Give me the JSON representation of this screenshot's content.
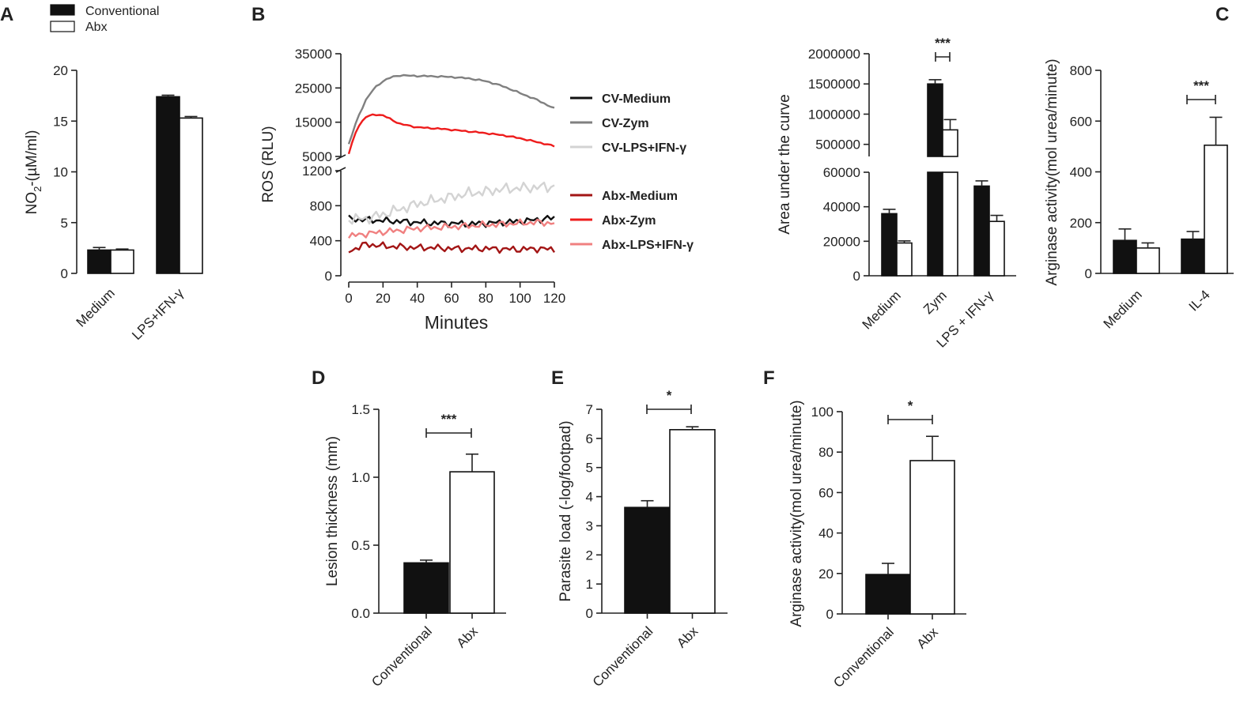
{
  "colors": {
    "black": "#111111",
    "white": "#ffffff",
    "cv_medium": "#111111",
    "cv_zym": "#808080",
    "cv_lps": "#d3d3d3",
    "abx_medium": "#a31515",
    "abx_zym": "#ee1c1c",
    "abx_lps": "#f08080"
  },
  "chart_data": [
    {
      "panel": "A",
      "type": "bar",
      "legend": [
        "Conventional",
        "Abx"
      ],
      "categories": [
        "Medium",
        "LPS+IFN-γ"
      ],
      "series": [
        {
          "name": "Conventional",
          "values": [
            2.3,
            17.4
          ],
          "errors": [
            0.25,
            0.15
          ]
        },
        {
          "name": "Abx",
          "values": [
            2.3,
            15.3
          ],
          "errors": [
            0.1,
            0.15
          ]
        }
      ],
      "ylabel_main": "NO",
      "ylabel_sub": "2",
      "ylabel_rest": "-(µM/ml)",
      "ylim": [
        0,
        20
      ],
      "yticks": [
        "0",
        "5",
        "10",
        "15",
        "20"
      ]
    },
    {
      "panel": "B",
      "type": "line",
      "ylabel": "ROS (RLU)",
      "xlabel": "Minutes",
      "xticks": [
        "0",
        "20",
        "40",
        "60",
        "80",
        "100",
        "120"
      ],
      "xlim": [
        0,
        120
      ],
      "upper_ylim": [
        5000,
        35000
      ],
      "upper_yticks": [
        "5000",
        "15000",
        "25000",
        "35000"
      ],
      "lower_ylim": [
        0,
        1200
      ],
      "lower_yticks": [
        "0",
        "400",
        "800",
        "1200"
      ],
      "series": [
        {
          "name": "CV-Medium",
          "x": [
            0,
            10,
            20,
            30,
            40,
            50,
            60,
            70,
            80,
            90,
            100,
            110,
            120
          ],
          "y": [
            650,
            640,
            630,
            620,
            610,
            600,
            600,
            590,
            600,
            610,
            620,
            640,
            660
          ]
        },
        {
          "name": "CV-Zym",
          "x": [
            0,
            5,
            10,
            15,
            20,
            25,
            30,
            40,
            50,
            60,
            70,
            80,
            90,
            100,
            110,
            120
          ],
          "y": [
            8500,
            16000,
            21500,
            25000,
            27000,
            28200,
            28700,
            28500,
            28400,
            28200,
            27800,
            27000,
            25500,
            23500,
            21500,
            19000
          ]
        },
        {
          "name": "CV-LPS+IFN-γ",
          "x": [
            0,
            10,
            20,
            30,
            40,
            50,
            60,
            70,
            80,
            90,
            100,
            110,
            120
          ],
          "y": [
            650,
            650,
            700,
            760,
            820,
            860,
            900,
            940,
            960,
            990,
            1000,
            1010,
            1020
          ]
        },
        {
          "name": "Abx-Medium",
          "x": [
            0,
            10,
            20,
            30,
            40,
            50,
            60,
            70,
            80,
            90,
            100,
            110,
            120
          ],
          "y": [
            280,
            360,
            340,
            330,
            320,
            320,
            310,
            310,
            310,
            305,
            300,
            310,
            300
          ]
        },
        {
          "name": "Abx-Zym",
          "x": [
            0,
            5,
            10,
            15,
            20,
            30,
            40,
            50,
            60,
            70,
            80,
            90,
            100,
            110,
            120
          ],
          "y": [
            5800,
            13500,
            16500,
            17300,
            17000,
            14500,
            13500,
            13200,
            12800,
            12300,
            11800,
            11200,
            10300,
            9200,
            8000
          ]
        },
        {
          "name": "Abx-LPS+IFN-γ",
          "x": [
            0,
            10,
            20,
            30,
            40,
            50,
            60,
            70,
            80,
            90,
            100,
            110,
            120
          ],
          "y": [
            450,
            480,
            500,
            520,
            540,
            550,
            560,
            570,
            580,
            590,
            600,
            610,
            600
          ]
        }
      ]
    },
    {
      "panel": "B-AUC",
      "type": "bar",
      "ylabel": "Area under the curve",
      "categories": [
        "Medium",
        "Zym",
        "LPS + IFN-γ"
      ],
      "series": [
        {
          "name": "Conventional",
          "values": [
            36000,
            1500000,
            52000
          ],
          "errors": [
            2500,
            70000,
            3000
          ]
        },
        {
          "name": "Abx",
          "values": [
            19000,
            740000,
            31500
          ],
          "errors": [
            1200,
            170000,
            3500
          ]
        }
      ],
      "upper_ylim": [
        300000,
        2000000
      ],
      "upper_yticks": [
        "500000",
        "1000000",
        "1500000",
        "2000000"
      ],
      "lower_ylim": [
        0,
        60000
      ],
      "lower_yticks": [
        "0",
        "20000",
        "40000",
        "60000"
      ],
      "annotation": "***"
    },
    {
      "panel": "C",
      "type": "bar",
      "ylabel": "Arginase activity(mol urea/minute)",
      "categories": [
        "Medium",
        "IL-4"
      ],
      "series": [
        {
          "name": "Conventional",
          "values": [
            130,
            135
          ],
          "errors": [
            45,
            30
          ]
        },
        {
          "name": "Abx",
          "values": [
            100,
            505
          ],
          "errors": [
            20,
            110
          ]
        }
      ],
      "ylim": [
        0,
        800
      ],
      "yticks": [
        "0",
        "200",
        "400",
        "600",
        "800"
      ],
      "annotation": "***"
    },
    {
      "panel": "D",
      "type": "bar",
      "ylabel": "Lesion thickness (mm)",
      "categories": [
        "Conventional",
        "Abx"
      ],
      "values": [
        0.37,
        1.04
      ],
      "errors": [
        0.02,
        0.13
      ],
      "ylim": [
        0,
        1.5
      ],
      "yticks": [
        "0.0",
        "0.5",
        "1.0",
        "1.5"
      ],
      "annotation": "***"
    },
    {
      "panel": "E",
      "type": "bar",
      "ylabel": "Parasite load (-log/footpad)",
      "categories": [
        "Conventional",
        "Abx"
      ],
      "values": [
        3.63,
        6.3
      ],
      "errors": [
        0.23,
        0.1
      ],
      "ylim": [
        0,
        7
      ],
      "yticks": [
        "0",
        "1",
        "2",
        "3",
        "4",
        "5",
        "6",
        "7"
      ],
      "annotation": "*"
    },
    {
      "panel": "F",
      "type": "bar",
      "ylabel": "Arginase activity(mol urea/minute)",
      "categories": [
        "Conventional",
        "Abx"
      ],
      "values": [
        19.5,
        75.8
      ],
      "errors": [
        5.5,
        12
      ],
      "ylim": [
        0,
        100
      ],
      "yticks": [
        "0",
        "20",
        "40",
        "60",
        "80",
        "100"
      ],
      "annotation": "*"
    }
  ]
}
